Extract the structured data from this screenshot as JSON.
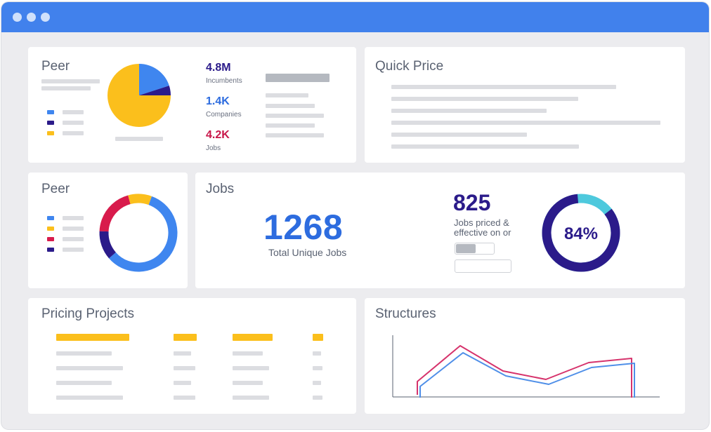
{
  "colors": {
    "titlebar": "#4181ec",
    "blue": "#3f86ef",
    "navy": "#2b1b8a",
    "yellow": "#fbbf1c",
    "crimson": "#d81b4c",
    "teal": "#4ec9dd"
  },
  "window": {
    "controls": [
      "window-dot-icon",
      "window-dot-icon",
      "window-dot-icon"
    ]
  },
  "peer_top": {
    "title": "Peer",
    "pie_slices": [
      {
        "color": "blue",
        "fraction": 0.2
      },
      {
        "color": "navy",
        "fraction": 0.05
      },
      {
        "color": "yellow",
        "fraction": 0.75
      }
    ],
    "legend": [
      {
        "color": "blue"
      },
      {
        "color": "navy"
      },
      {
        "color": "yellow"
      }
    ],
    "stats": [
      {
        "value": "4.8M",
        "label": "Incumbents",
        "color": "#2b1b8a"
      },
      {
        "value": "1.4K",
        "label": "Companies",
        "color": "#2d6cdf"
      },
      {
        "value": "4.2K",
        "label": "Jobs",
        "color": "#c8174a"
      }
    ]
  },
  "quick_price": {
    "title": "Quick Price"
  },
  "peer_mid": {
    "title": "Peer",
    "donut_segments": [
      {
        "color": "blue",
        "fraction": 0.58
      },
      {
        "color": "navy",
        "fraction": 0.12
      },
      {
        "color": "crimson",
        "fraction": 0.2
      },
      {
        "color": "yellow",
        "fraction": 0.1
      }
    ],
    "legend": [
      {
        "color": "blue"
      },
      {
        "color": "yellow"
      },
      {
        "color": "crimson"
      },
      {
        "color": "navy"
      }
    ]
  },
  "jobs": {
    "title": "Jobs",
    "total_value": "1268",
    "total_label": "Total Unique Jobs",
    "priced_value": "825",
    "priced_label": "Jobs priced & effective on or",
    "toggle_fraction": 0.5,
    "percent_value": 84,
    "percent_label": "84%"
  },
  "pricing_projects": {
    "title": "Pricing Projects"
  },
  "structures": {
    "title": "Structures",
    "chart_data": {
      "type": "line",
      "title": "",
      "xlabel": "",
      "ylabel": "",
      "grid": false,
      "x": [
        0,
        1,
        2,
        3,
        4,
        5
      ],
      "series": [
        {
          "color": "#d6336c",
          "values": [
            0.15,
            1.0,
            0.4,
            0.2,
            0.6,
            0.7
          ]
        },
        {
          "color": "#4f8fe8",
          "values": [
            0.1,
            0.9,
            0.35,
            0.15,
            0.55,
            0.65
          ]
        }
      ]
    }
  }
}
